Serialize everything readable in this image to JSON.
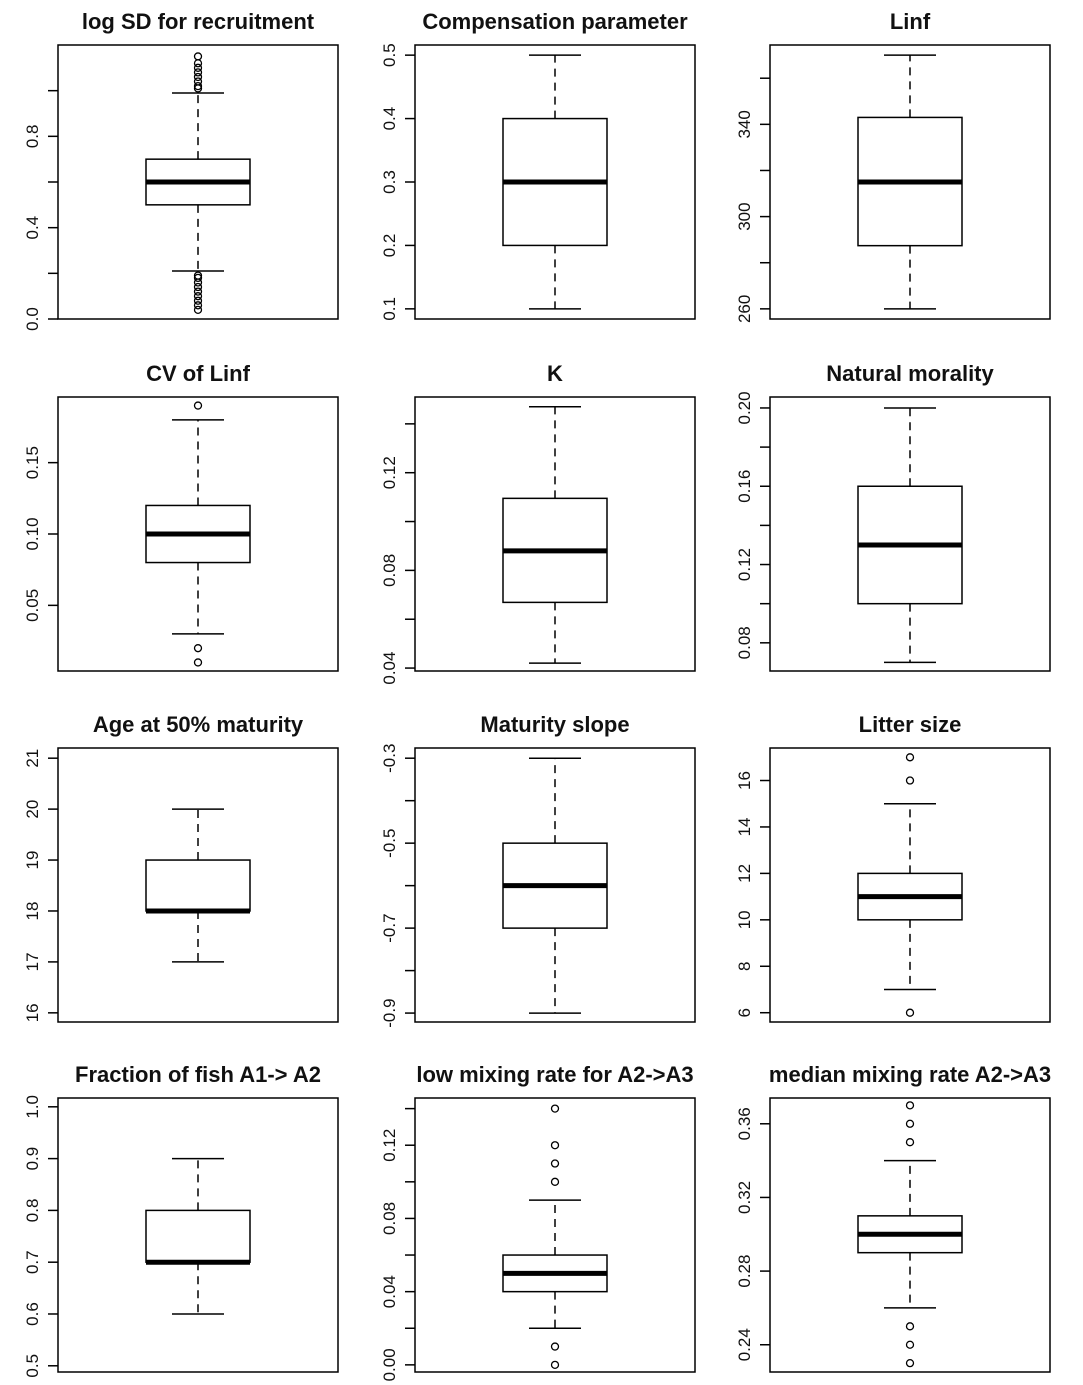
{
  "chart_data": [
    {
      "type": "box",
      "title": "log SD for recruitment",
      "ylim": [
        0,
        1.2
      ],
      "yticks": [
        {
          "value": 0,
          "label": "0.0"
        },
        0.4,
        0.8
      ],
      "minor_yticks": [
        0.2,
        0.6,
        1
      ],
      "whisker_low": 0.21,
      "q1": 0.5,
      "median": 0.6,
      "q3": 0.7,
      "whisker_high": 0.99,
      "outliers": [
        0.04,
        0.06,
        0.08,
        0.1,
        0.12,
        0.14,
        0.16,
        0.18,
        0.19,
        1.01,
        1.02,
        1.04,
        1.06,
        1.08,
        1.1,
        1.12,
        1.15
      ]
    },
    {
      "type": "box",
      "title": "Compensation parameter",
      "ylim": [
        0.084,
        0.516
      ],
      "yticks": [
        0.1,
        0.2,
        0.3,
        0.4,
        0.5
      ],
      "minor_yticks": [],
      "whisker_low": 0.1,
      "q1": 0.2,
      "median": 0.3,
      "q3": 0.4,
      "whisker_high": 0.5,
      "outliers": []
    },
    {
      "type": "box",
      "title": "Linf",
      "ylim": [
        255.6,
        374.4
      ],
      "yticks": [
        260,
        300,
        340
      ],
      "minor_yticks": [
        280,
        320,
        360
      ],
      "whisker_low": 260,
      "q1": 287.4,
      "median": 315,
      "q3": 343,
      "whisker_high": 370,
      "outliers": []
    },
    {
      "type": "box",
      "title": "CV of Linf",
      "ylim": [
        0.004,
        0.196
      ],
      "yticks": [
        0.05,
        {
          "value": 0.1,
          "label": "0.10"
        },
        0.15
      ],
      "minor_yticks": [],
      "whisker_low": 0.03,
      "q1": 0.08,
      "median": 0.1,
      "q3": 0.12,
      "whisker_high": 0.18,
      "outliers": [
        0.01,
        0.02,
        0.19
      ]
    },
    {
      "type": "box",
      "title": "K",
      "ylim": [
        0.0388,
        0.151
      ],
      "yticks": [
        0.04,
        0.08,
        0.12
      ],
      "minor_yticks": [
        0.06,
        0.1,
        0.14
      ],
      "whisker_low": 0.042,
      "q1": 0.0669,
      "median": 0.088,
      "q3": 0.1095,
      "whisker_high": 0.147,
      "outliers": []
    },
    {
      "type": "box",
      "title": "Natural morality",
      "ylim": [
        0.0656,
        0.2056
      ],
      "yticks": [
        0.08,
        0.12,
        0.16,
        {
          "value": 0.2,
          "label": "0.20"
        }
      ],
      "minor_yticks": [
        0.1,
        0.14,
        0.18
      ],
      "whisker_low": 0.07,
      "q1": 0.1,
      "median": 0.13,
      "q3": 0.16,
      "whisker_high": 0.2,
      "outliers": []
    },
    {
      "type": "box",
      "title": "Age at 50% maturity",
      "ylim": [
        15.82,
        21.2
      ],
      "yticks": [
        16,
        17,
        18,
        19,
        20,
        21
      ],
      "minor_yticks": [],
      "whisker_low": 17,
      "q1": 18,
      "median": 18,
      "q3": 19,
      "whisker_high": 20,
      "outliers": []
    },
    {
      "type": "box",
      "title": "Maturity slope",
      "ylim": [
        -0.921,
        -0.276
      ],
      "yticks": [
        -0.9,
        -0.7,
        -0.5,
        -0.3
      ],
      "minor_yticks": [
        -0.8,
        -0.6,
        -0.4
      ],
      "whisker_low": -0.9,
      "q1": -0.7,
      "median": -0.6,
      "q3": -0.5,
      "whisker_high": -0.3,
      "outliers": []
    },
    {
      "type": "box",
      "title": "Litter size",
      "ylim": [
        5.6,
        17.4
      ],
      "yticks": [
        6,
        8,
        10,
        12,
        14,
        16
      ],
      "minor_yticks": [],
      "whisker_low": 7,
      "q1": 10,
      "median": 11,
      "q3": 12,
      "whisker_high": 15,
      "outliers": [
        6,
        16,
        17
      ]
    },
    {
      "type": "box",
      "title": "Fraction of fish A1-> A2",
      "ylim": [
        0.488,
        1.017
      ],
      "yticks": [
        0.5,
        0.6,
        0.7,
        0.8,
        0.9,
        {
          "value": 1,
          "label": "1.0"
        }
      ],
      "minor_yticks": [],
      "whisker_low": 0.6,
      "q1": 0.7,
      "median": 0.7,
      "q3": 0.8,
      "whisker_high": 0.9,
      "outliers": []
    },
    {
      "type": "box",
      "title": "low mixing rate for A2->A3",
      "ylim": [
        -0.0039,
        0.1458
      ],
      "yticks": [
        {
          "value": 0,
          "label": "0.00"
        },
        0.04,
        0.08,
        0.12
      ],
      "minor_yticks": [
        0.02,
        0.06,
        0.1,
        0.14
      ],
      "whisker_low": 0.02,
      "q1": 0.04,
      "median": 0.05,
      "q3": 0.06,
      "whisker_high": 0.09,
      "outliers": [
        0,
        0.01,
        0.1,
        0.11,
        0.12,
        0.14
      ]
    },
    {
      "type": "box",
      "title": "median mixing rate A2->A3",
      "ylim": [
        0.2252,
        0.374
      ],
      "yticks": [
        0.24,
        0.28,
        0.32,
        0.36
      ],
      "minor_yticks": [],
      "whisker_low": 0.26,
      "q1": 0.29,
      "median": 0.3,
      "q3": 0.31,
      "whisker_high": 0.34,
      "outliers": [
        0.23,
        0.24,
        0.25,
        0.35,
        0.36,
        0.37
      ]
    }
  ]
}
